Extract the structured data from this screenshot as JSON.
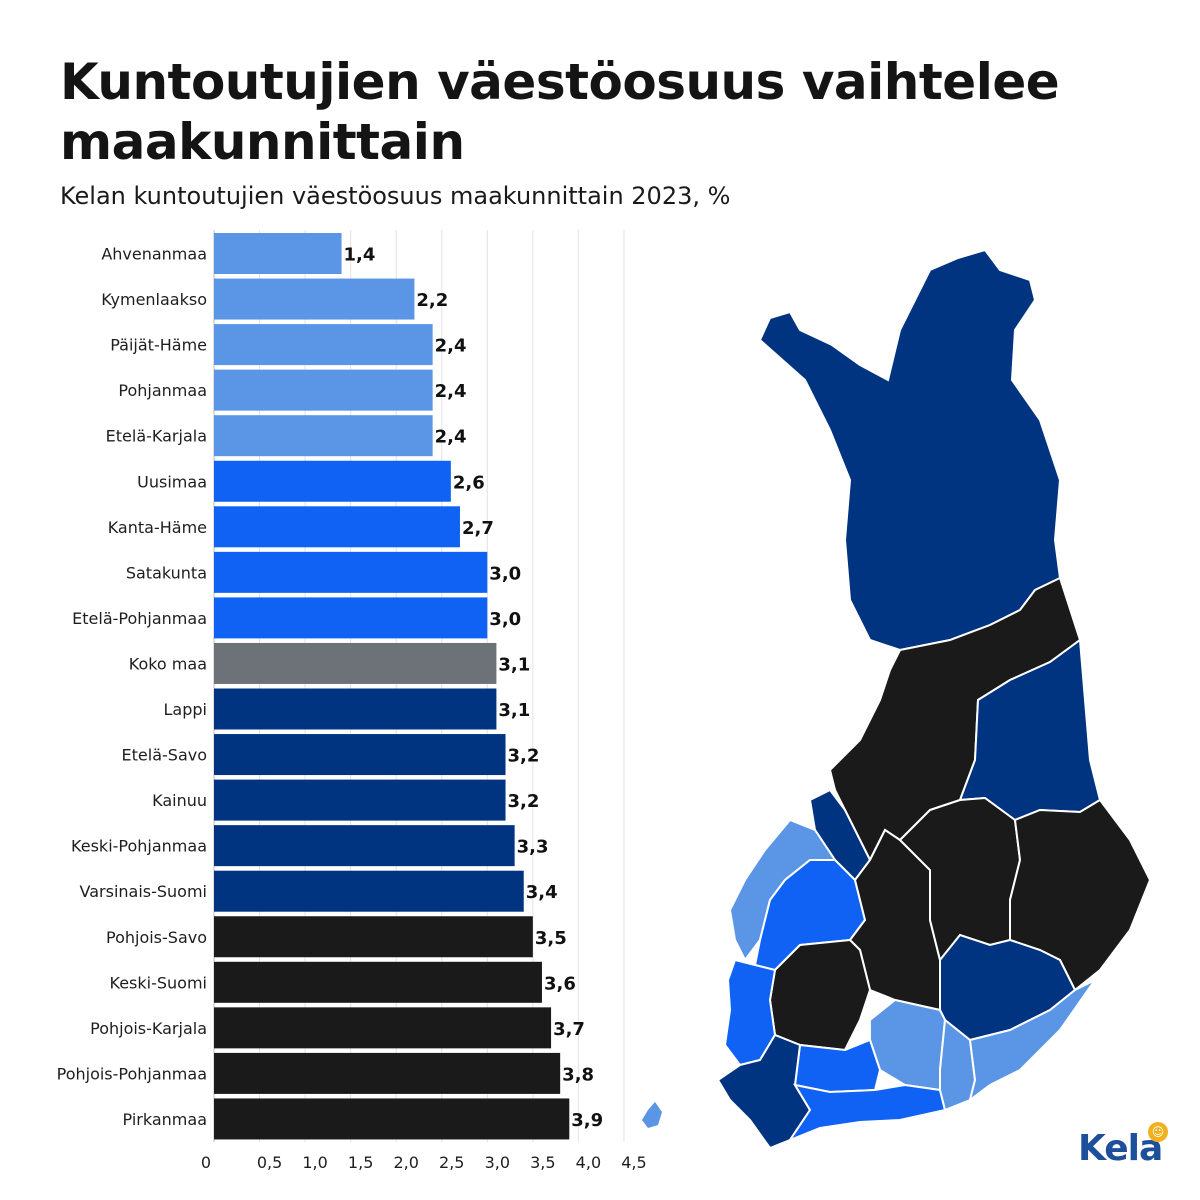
{
  "title": "Kuntoutujien väestöosuus vaihtelee maakunnittain",
  "subtitle": "Kelan kuntoutujien väestöosuus maakunnittain 2023, %",
  "brand": {
    "name": "Kela",
    "colors": {
      "logo": "#1d4f9a",
      "badge": "#f2b01e"
    }
  },
  "legend_colors": {
    "light_blue": "#5b95e6",
    "bright_blue": "#0f62f3",
    "dark_blue": "#003380",
    "black": "#1a1a1a",
    "grey": "#6d7278"
  },
  "chart_data": {
    "type": "bar",
    "orientation": "horizontal",
    "title": "Kuntoutujien väestöosuus vaihtelee maakunnittain",
    "subtitle": "Kelan kuntoutujien väestöosuus maakunnittain 2023, %",
    "xlim": [
      0,
      4.5
    ],
    "xticks": [
      "0",
      "0,5",
      "1,0",
      "1,5",
      "2,0",
      "2,5",
      "3,0",
      "3,5",
      "4,0",
      "4,5"
    ],
    "xtick_values": [
      0,
      0.5,
      1.0,
      1.5,
      2.0,
      2.5,
      3.0,
      3.5,
      4.0,
      4.5
    ],
    "grid": true,
    "categories": [
      "Ahvenanmaa",
      "Kymenlaakso",
      "Päijät-Häme",
      "Pohjanmaa",
      "Etelä-Karjala",
      "Uusimaa",
      "Kanta-Häme",
      "Satakunta",
      "Etelä-Pohjanmaa",
      "Koko maa",
      "Lappi",
      "Etelä-Savo",
      "Kainuu",
      "Keski-Pohjanmaa",
      "Varsinais-Suomi",
      "Pohjois-Savo",
      "Keski-Suomi",
      "Pohjois-Karjala",
      "Pohjois-Pohjanmaa",
      "Pirkanmaa"
    ],
    "values": [
      1.4,
      2.2,
      2.4,
      2.4,
      2.4,
      2.6,
      2.7,
      3.0,
      3.0,
      3.1,
      3.1,
      3.2,
      3.2,
      3.3,
      3.4,
      3.5,
      3.6,
      3.7,
      3.8,
      3.9
    ],
    "value_labels": [
      "1,4",
      "2,2",
      "2,4",
      "2,4",
      "2,4",
      "2,6",
      "2,7",
      "3,0",
      "3,0",
      "3,1",
      "3,1",
      "3,2",
      "3,2",
      "3,3",
      "3,4",
      "3,5",
      "3,6",
      "3,7",
      "3,8",
      "3,9"
    ],
    "colors": [
      "#5b95e6",
      "#5b95e6",
      "#5b95e6",
      "#5b95e6",
      "#5b95e6",
      "#0f62f3",
      "#0f62f3",
      "#0f62f3",
      "#0f62f3",
      "#6d7278",
      "#003380",
      "#003380",
      "#003380",
      "#003380",
      "#003380",
      "#1a1a1a",
      "#1a1a1a",
      "#1a1a1a",
      "#1a1a1a",
      "#1a1a1a"
    ]
  }
}
